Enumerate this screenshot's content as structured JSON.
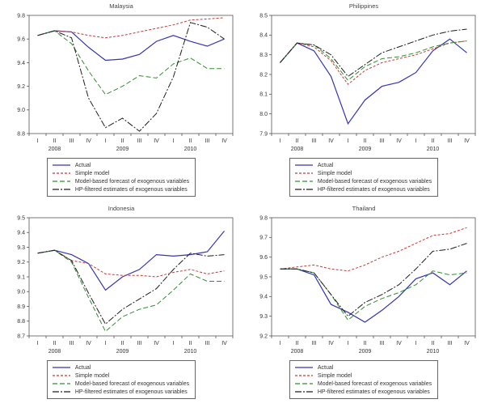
{
  "page": {
    "background": "#ffffff"
  },
  "legend_items": [
    {
      "label": "Actual",
      "color": "#3434b8",
      "dash": ""
    },
    {
      "label": "Simple model",
      "color": "#c23a3a",
      "dash": "3,2"
    },
    {
      "label": "Model-based forecast of exogenous variables",
      "color": "#2f8f2f",
      "dash": "6,3"
    },
    {
      "label": "HP-filtered estimates of exogenous variables",
      "color": "#1f1f1f",
      "dash": "8,2,2,2"
    }
  ],
  "x_axis": {
    "quarter_labels": [
      "I",
      "II",
      "III",
      "IV",
      "I",
      "II",
      "III",
      "IV",
      "I",
      "II",
      "III",
      "IV"
    ],
    "year_labels": [
      "2008",
      "2009",
      "2010"
    ],
    "year_positions": [
      1,
      5,
      9
    ]
  },
  "axis_style": {
    "frame_color": "#555555",
    "label_color": "#333333"
  },
  "chart_data": [
    {
      "type": "line",
      "title": "Malaysia",
      "ylim": [
        8.8,
        9.8
      ],
      "yticks": [
        8.8,
        9.0,
        9.2,
        9.4,
        9.6,
        9.8
      ],
      "categories": [
        "2008 I",
        "2008 II",
        "2008 III",
        "2008 IV",
        "2009 I",
        "2009 II",
        "2009 III",
        "2009 IV",
        "2010 I",
        "2010 II",
        "2010 III",
        "2010 IV"
      ],
      "series": [
        {
          "name": "Actual",
          "values": [
            9.63,
            9.67,
            9.66,
            9.53,
            9.42,
            9.43,
            9.47,
            9.58,
            9.63,
            9.58,
            9.54,
            9.6
          ]
        },
        {
          "name": "Simple model",
          "values": [
            9.63,
            9.67,
            9.66,
            9.63,
            9.61,
            9.63,
            9.66,
            9.69,
            9.72,
            9.76,
            9.77,
            9.78
          ]
        },
        {
          "name": "Model-based forecast of exogenous variables",
          "values": [
            9.63,
            9.67,
            9.56,
            9.33,
            9.13,
            9.2,
            9.29,
            9.27,
            9.39,
            9.44,
            9.35,
            9.35
          ]
        },
        {
          "name": "HP-filtered estimates of exogenous variables",
          "values": [
            9.63,
            9.67,
            9.61,
            9.1,
            8.85,
            8.93,
            8.82,
            8.97,
            9.28,
            9.74,
            9.7,
            9.6
          ]
        }
      ]
    },
    {
      "type": "line",
      "title": "Philippines",
      "ylim": [
        7.9,
        8.5
      ],
      "yticks": [
        7.9,
        8.0,
        8.1,
        8.2,
        8.3,
        8.4,
        8.5
      ],
      "categories": [
        "2008 I",
        "2008 II",
        "2008 III",
        "2008 IV",
        "2009 I",
        "2009 II",
        "2009 III",
        "2009 IV",
        "2010 I",
        "2010 II",
        "2010 III",
        "2010 IV"
      ],
      "series": [
        {
          "name": "Actual",
          "values": [
            8.26,
            8.36,
            8.32,
            8.19,
            7.95,
            8.07,
            8.14,
            8.16,
            8.21,
            8.32,
            8.38,
            8.31
          ]
        },
        {
          "name": "Simple model",
          "values": [
            8.26,
            8.36,
            8.34,
            8.27,
            8.15,
            8.22,
            8.26,
            8.28,
            8.3,
            8.33,
            8.36,
            8.37
          ]
        },
        {
          "name": "Model-based forecast of exogenous variables",
          "values": [
            8.26,
            8.36,
            8.35,
            8.28,
            8.17,
            8.24,
            8.28,
            8.29,
            8.31,
            8.34,
            8.36,
            8.37
          ]
        },
        {
          "name": "HP-filtered estimates of exogenous variables",
          "values": [
            8.26,
            8.36,
            8.35,
            8.3,
            8.19,
            8.25,
            8.31,
            8.34,
            8.37,
            8.4,
            8.42,
            8.43
          ]
        }
      ]
    },
    {
      "type": "line",
      "title": "Indonesia",
      "ylim": [
        8.7,
        9.5
      ],
      "yticks": [
        8.7,
        8.8,
        8.9,
        9.0,
        9.1,
        9.2,
        9.3,
        9.4,
        9.5
      ],
      "categories": [
        "2008 I",
        "2008 II",
        "2008 III",
        "2008 IV",
        "2009 I",
        "2009 II",
        "2009 III",
        "2009 IV",
        "2010 I",
        "2010 II",
        "2010 III",
        "2010 IV"
      ],
      "series": [
        {
          "name": "Actual",
          "values": [
            9.26,
            9.28,
            9.25,
            9.19,
            9.01,
            9.1,
            9.15,
            9.25,
            9.24,
            9.25,
            9.27,
            9.41
          ]
        },
        {
          "name": "Simple model",
          "values": [
            9.26,
            9.28,
            9.21,
            9.19,
            9.12,
            9.11,
            9.11,
            9.1,
            9.13,
            9.15,
            9.12,
            9.14
          ]
        },
        {
          "name": "Model-based forecast of exogenous variables",
          "values": [
            9.26,
            9.28,
            9.2,
            8.96,
            8.73,
            8.83,
            8.88,
            8.91,
            9.01,
            9.12,
            9.07,
            9.07
          ]
        },
        {
          "name": "HP-filtered estimates of exogenous variables",
          "values": [
            9.26,
            9.28,
            9.21,
            8.99,
            8.78,
            8.88,
            8.95,
            9.02,
            9.15,
            9.26,
            9.24,
            9.25
          ]
        }
      ]
    },
    {
      "type": "line",
      "title": "Thailand",
      "ylim": [
        9.2,
        9.8
      ],
      "yticks": [
        9.2,
        9.3,
        9.4,
        9.5,
        9.6,
        9.7,
        9.8
      ],
      "categories": [
        "2008 I",
        "2008 II",
        "2008 III",
        "2008 IV",
        "2009 I",
        "2009 II",
        "2009 III",
        "2009 IV",
        "2010 I",
        "2010 II",
        "2010 III",
        "2010 IV"
      ],
      "series": [
        {
          "name": "Actual",
          "values": [
            9.54,
            9.54,
            9.51,
            9.36,
            9.32,
            9.27,
            9.33,
            9.4,
            9.49,
            9.52,
            9.46,
            9.53
          ]
        },
        {
          "name": "Simple model",
          "values": [
            9.54,
            9.55,
            9.56,
            9.54,
            9.53,
            9.56,
            9.6,
            9.63,
            9.67,
            9.71,
            9.72,
            9.75
          ]
        },
        {
          "name": "Model-based forecast of exogenous variables",
          "values": [
            9.54,
            9.54,
            9.52,
            9.41,
            9.28,
            9.35,
            9.39,
            9.42,
            9.46,
            9.53,
            9.51,
            9.52
          ]
        },
        {
          "name": "HP-filtered estimates of exogenous variables",
          "values": [
            9.54,
            9.54,
            9.52,
            9.41,
            9.3,
            9.37,
            9.41,
            9.46,
            9.54,
            9.63,
            9.64,
            9.67
          ]
        }
      ]
    }
  ]
}
